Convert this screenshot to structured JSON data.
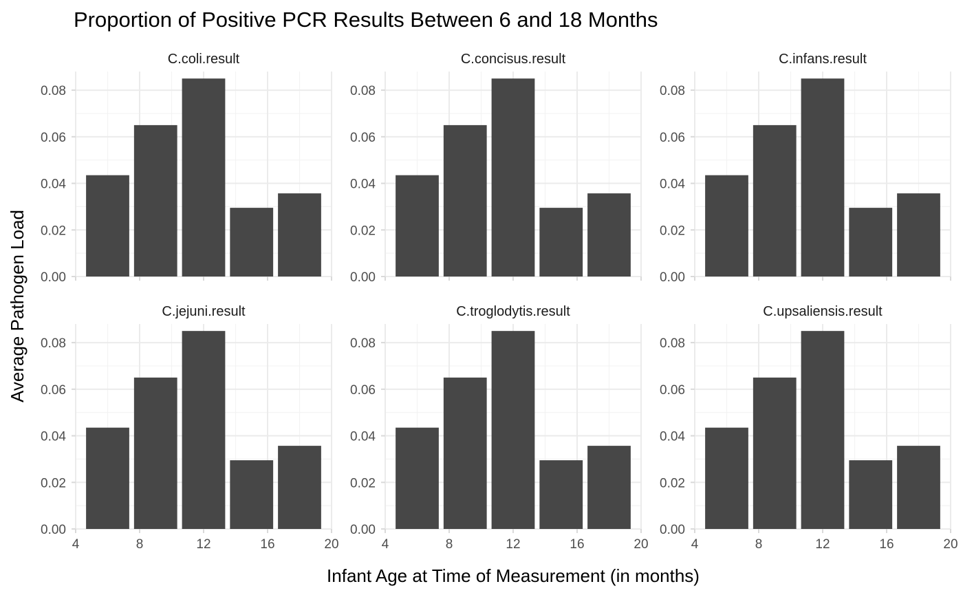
{
  "chart_data": {
    "type": "bar",
    "title": "Proportion of Positive PCR Results Between 6 and 18 Months",
    "xlabel": "Infant Age at Time of Measurement (in months)",
    "ylabel": "Average Pathogen Load",
    "xlim": [
      4,
      20
    ],
    "ylim": [
      0,
      0.088
    ],
    "x_ticks": [
      "4",
      "8",
      "12",
      "16",
      "20"
    ],
    "y_ticks": [
      "0.00",
      "0.02",
      "0.04",
      "0.06",
      "0.08"
    ],
    "bar_color": "#474747",
    "facet_layout": {
      "rows": 2,
      "cols": 3
    },
    "facets": [
      {
        "name": "C.coli.result",
        "x": [
          6,
          9,
          12,
          15,
          18
        ],
        "values": [
          0.0435,
          0.065,
          0.085,
          0.0295,
          0.0357
        ]
      },
      {
        "name": "C.concisus.result",
        "x": [
          6,
          9,
          12,
          15,
          18
        ],
        "values": [
          0.0435,
          0.065,
          0.085,
          0.0295,
          0.0357
        ]
      },
      {
        "name": "C.infans.result",
        "x": [
          6,
          9,
          12,
          15,
          18
        ],
        "values": [
          0.0435,
          0.065,
          0.085,
          0.0295,
          0.0357
        ]
      },
      {
        "name": "C.jejuni.result",
        "x": [
          6,
          9,
          12,
          15,
          18
        ],
        "values": [
          0.0435,
          0.065,
          0.085,
          0.0295,
          0.0357
        ]
      },
      {
        "name": "C.troglodytis.result",
        "x": [
          6,
          9,
          12,
          15,
          18
        ],
        "values": [
          0.0435,
          0.065,
          0.085,
          0.0295,
          0.0357
        ]
      },
      {
        "name": "C.upsaliensis.result",
        "x": [
          6,
          9,
          12,
          15,
          18
        ],
        "values": [
          0.0435,
          0.065,
          0.085,
          0.0295,
          0.0357
        ]
      }
    ]
  }
}
